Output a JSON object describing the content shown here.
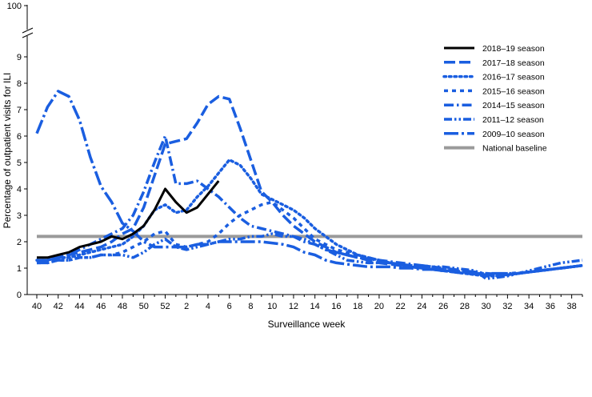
{
  "chart_data": {
    "type": "line",
    "title": "",
    "xlabel": "Surveillance week",
    "ylabel": "Percentage of outpatient visits for ILI",
    "x_tick_labels": [
      "40",
      "42",
      "44",
      "46",
      "48",
      "50",
      "52",
      "2",
      "4",
      "6",
      "8",
      "10",
      "12",
      "14",
      "16",
      "18",
      "20",
      "22",
      "24",
      "26",
      "28",
      "30",
      "32",
      "34",
      "36",
      "38"
    ],
    "y_ticks": [
      0,
      1,
      2,
      3,
      4,
      5,
      6,
      7,
      8,
      9
    ],
    "y_break_top_label": "100",
    "ylim": [
      0,
      9
    ],
    "grid": false,
    "legend_position": "top-right",
    "x_weeks": [
      40,
      41,
      42,
      43,
      44,
      45,
      46,
      47,
      48,
      49,
      50,
      51,
      52,
      1,
      2,
      3,
      4,
      5,
      6,
      7,
      8,
      9,
      10,
      11,
      12,
      13,
      14,
      15,
      16,
      17,
      18,
      19,
      20,
      21,
      22,
      23,
      24,
      25,
      26,
      27,
      28,
      29,
      30,
      31,
      32,
      33,
      34,
      35,
      36,
      37,
      38,
      39
    ],
    "series": [
      {
        "name": "2018–19 season",
        "color": "#000000",
        "dash": "solid",
        "values": [
          1.4,
          1.4,
          1.5,
          1.6,
          1.8,
          1.9,
          2.0,
          2.2,
          2.1,
          2.3,
          2.6,
          3.2,
          4.0,
          3.5,
          3.1,
          3.3,
          3.8,
          4.3
        ]
      },
      {
        "name": "2017–18 season",
        "color": "#1a5ee0",
        "dash": "longdash",
        "values": [
          1.3,
          1.3,
          1.4,
          1.5,
          1.6,
          1.7,
          1.8,
          2.0,
          2.3,
          2.5,
          3.3,
          4.5,
          5.7,
          5.8,
          5.9,
          6.5,
          7.2,
          7.5,
          7.4,
          6.3,
          5.1,
          3.9,
          3.5,
          3.0,
          2.6,
          2.3,
          2.0,
          1.8,
          1.6,
          1.5,
          1.4,
          1.3,
          1.2,
          1.15,
          1.1,
          1.05,
          1.0,
          0.95,
          0.9,
          0.85,
          0.8,
          0.78,
          0.75,
          0.72,
          0.75,
          0.8,
          0.85,
          0.9,
          0.95,
          1.0,
          1.05,
          1.1
        ]
      },
      {
        "name": "2016–17 season",
        "color": "#1a5ee0",
        "dash": "dot",
        "values": [
          1.3,
          1.3,
          1.4,
          1.4,
          1.5,
          1.6,
          1.7,
          1.8,
          1.9,
          2.2,
          2.6,
          3.2,
          3.4,
          3.1,
          3.2,
          3.7,
          4.1,
          4.6,
          5.1,
          4.9,
          4.4,
          3.8,
          3.6,
          3.4,
          3.2,
          2.9,
          2.5,
          2.2,
          1.9,
          1.7,
          1.5,
          1.4,
          1.3,
          1.2,
          1.1,
          1.05,
          1.0,
          0.95,
          0.9,
          0.85,
          0.8,
          0.75,
          0.7,
          0.7,
          0.75,
          0.8,
          0.85,
          0.9,
          0.95,
          1.0,
          1.05,
          1.1
        ]
      },
      {
        "name": "2015–16 season",
        "color": "#1a5ee0",
        "dash": "shortdash",
        "values": [
          1.2,
          1.2,
          1.3,
          1.3,
          1.4,
          1.4,
          1.5,
          1.5,
          1.6,
          1.8,
          2.0,
          2.3,
          2.4,
          1.9,
          1.8,
          1.9,
          2.0,
          2.3,
          2.7,
          3.0,
          3.2,
          3.4,
          3.5,
          3.2,
          2.9,
          2.5,
          2.1,
          1.9,
          1.7,
          1.6,
          1.5,
          1.4,
          1.3,
          1.2,
          1.15,
          1.1,
          1.05,
          1.0,
          0.95,
          0.9,
          0.85,
          0.8,
          0.8,
          0.78,
          0.8,
          0.82,
          0.85,
          0.9,
          0.95,
          1.0,
          1.05,
          1.1
        ]
      },
      {
        "name": "2014–15 season",
        "color": "#1a5ee0",
        "dash": "dashdot",
        "values": [
          1.2,
          1.3,
          1.4,
          1.5,
          1.7,
          1.9,
          2.1,
          2.3,
          2.5,
          3.0,
          3.9,
          5.0,
          6.0,
          4.2,
          4.2,
          4.3,
          4.0,
          3.7,
          3.3,
          2.9,
          2.6,
          2.5,
          2.4,
          2.3,
          2.2,
          2.0,
          1.9,
          1.7,
          1.6,
          1.5,
          1.4,
          1.35,
          1.3,
          1.25,
          1.2,
          1.15,
          1.1,
          1.05,
          1.0,
          0.95,
          0.9,
          0.85,
          0.8,
          0.75,
          0.75,
          0.8,
          0.85,
          0.9,
          0.95,
          1.0,
          1.05,
          1.1
        ]
      },
      {
        "name": "2011–12 season",
        "color": "#1a5ee0",
        "dash": "dashdotdot",
        "values": [
          1.2,
          1.2,
          1.3,
          1.3,
          1.4,
          1.4,
          1.5,
          1.5,
          1.5,
          1.4,
          1.6,
          1.9,
          2.1,
          1.8,
          1.7,
          1.8,
          1.9,
          2.0,
          2.1,
          2.1,
          2.2,
          2.2,
          2.3,
          2.2,
          2.2,
          2.1,
          1.9,
          1.7,
          1.5,
          1.3,
          1.25,
          1.2,
          1.2,
          1.2,
          1.15,
          1.1,
          1.1,
          1.05,
          1.05,
          1.0,
          0.95,
          0.9,
          0.6,
          0.65,
          0.7,
          0.8,
          0.9,
          1.0,
          1.1,
          1.2,
          1.25,
          1.3
        ]
      },
      {
        "name": "2009–10 season",
        "color": "#1a5ee0",
        "dash": "longdashdot",
        "values": [
          6.1,
          7.1,
          7.7,
          7.5,
          6.6,
          5.2,
          4.1,
          3.5,
          2.7,
          2.4,
          2.0,
          1.8,
          1.8,
          1.8,
          1.8,
          1.9,
          1.9,
          2.0,
          2.0,
          2.0,
          2.0,
          2.0,
          1.95,
          1.9,
          1.8,
          1.6,
          1.5,
          1.3,
          1.2,
          1.15,
          1.1,
          1.05,
          1.05,
          1.05,
          1.0,
          1.0,
          0.95,
          0.95,
          0.9,
          0.9,
          0.85,
          0.8,
          0.8,
          0.8,
          0.8,
          0.8,
          0.85,
          0.9,
          0.95,
          1.0,
          1.05,
          1.1
        ]
      },
      {
        "name": "National baseline",
        "color": "#9a9a9a",
        "dash": "solid",
        "values": [
          2.2,
          2.2,
          2.2,
          2.2,
          2.2,
          2.2,
          2.2,
          2.2,
          2.2,
          2.2,
          2.2,
          2.2,
          2.2,
          2.2,
          2.2,
          2.2,
          2.2,
          2.2,
          2.2,
          2.2,
          2.2,
          2.2,
          2.2,
          2.2,
          2.2,
          2.2,
          2.2,
          2.2,
          2.2,
          2.2,
          2.2,
          2.2,
          2.2,
          2.2,
          2.2,
          2.2,
          2.2,
          2.2,
          2.2,
          2.2,
          2.2,
          2.2,
          2.2,
          2.2,
          2.2,
          2.2,
          2.2,
          2.2,
          2.2,
          2.2,
          2.2,
          2.2
        ]
      }
    ]
  }
}
